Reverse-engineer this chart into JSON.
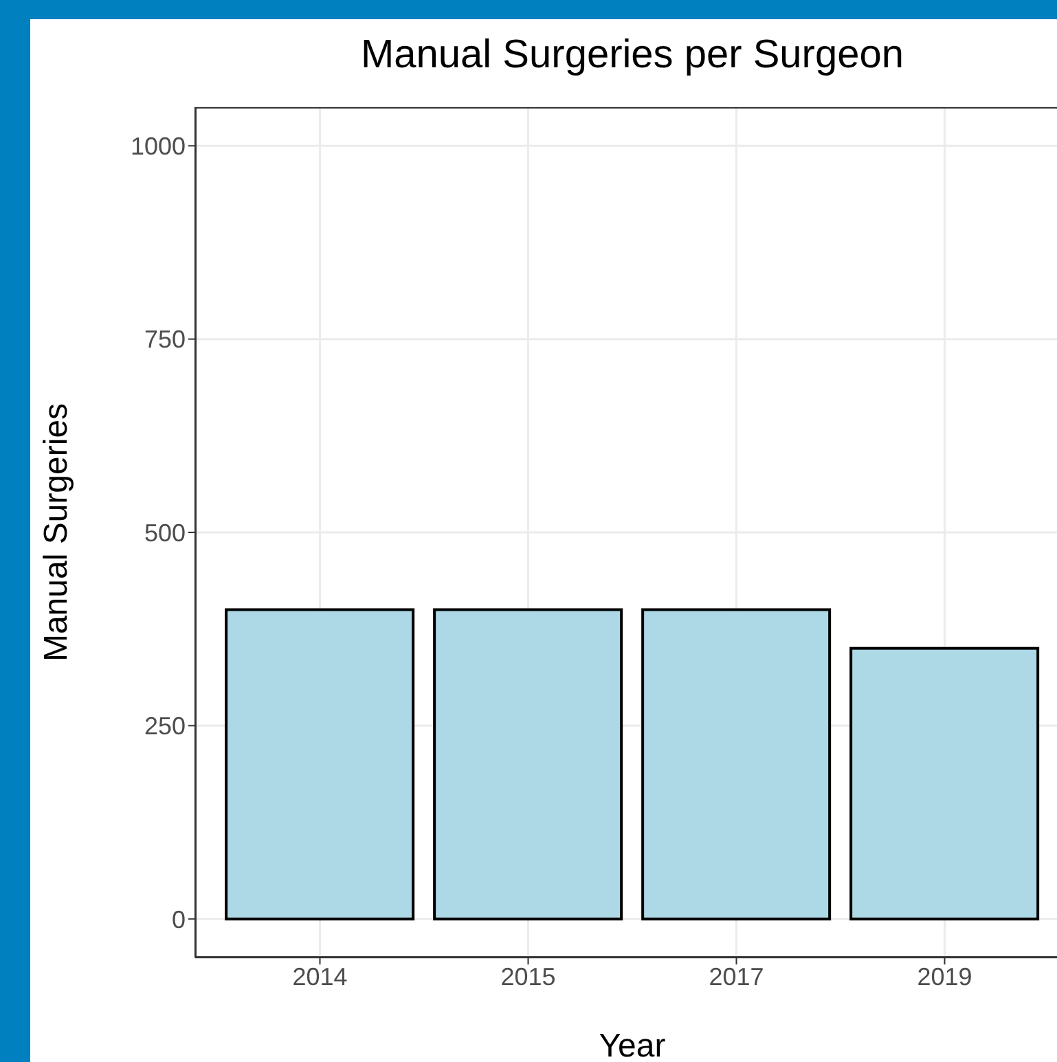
{
  "chart_data": {
    "type": "bar",
    "title": "Manual Surgeries per Surgeon",
    "xlabel": "Year",
    "ylabel": "Manual Surgeries",
    "categories": [
      "2014",
      "2015",
      "2017",
      "2019"
    ],
    "values": [
      400,
      400,
      400,
      350
    ],
    "color": "#add8e6",
    "ylim": [
      -50,
      1050
    ],
    "yticks": [
      0,
      250,
      500,
      750,
      1000
    ],
    "grid": true,
    "legend": false
  }
}
